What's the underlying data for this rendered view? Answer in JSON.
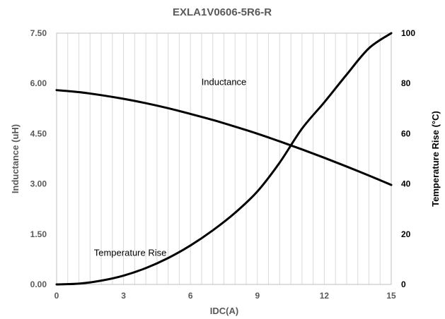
{
  "chart_data": {
    "type": "line",
    "title": "EXLA1V0606-5R6-R",
    "xlabel": "IDC(A)",
    "ylabel": "Inductance   (uH)",
    "y2label": "Temperature Rise (°C)",
    "xlim": [
      0,
      15
    ],
    "ylim": [
      0,
      7.5
    ],
    "y2lim": [
      0,
      100
    ],
    "x_ticks": [
      0,
      3,
      6,
      9,
      12,
      15
    ],
    "x_tick_labels": [
      "0",
      "3",
      "6",
      "9",
      "12",
      "15"
    ],
    "y_ticks": [
      0,
      1.5,
      3,
      4.5,
      6,
      7.5
    ],
    "y_tick_labels": [
      "0.00",
      "1.50",
      "3.00",
      "4.50",
      "6.00",
      "7.50"
    ],
    "y2_ticks": [
      0,
      20,
      40,
      60,
      80,
      100
    ],
    "y2_tick_labels": [
      "0",
      "20",
      "40",
      "60",
      "80",
      "100"
    ],
    "grid": {
      "vertical_step": 0.5,
      "horizontal": false,
      "vertical": true
    },
    "series": [
      {
        "name": "Inductance",
        "axis": "left",
        "x": [
          0,
          1,
          2,
          3,
          4,
          5,
          6,
          7,
          8,
          9,
          10,
          11,
          12,
          13,
          14,
          15
        ],
        "y": [
          5.8,
          5.74,
          5.65,
          5.54,
          5.41,
          5.26,
          5.09,
          4.91,
          4.71,
          4.5,
          4.27,
          4.03,
          3.78,
          3.52,
          3.25,
          2.97
        ]
      },
      {
        "name": "Temperature Rise",
        "axis": "right",
        "x": [
          0,
          1,
          2,
          3,
          4,
          5,
          6,
          7,
          8,
          9,
          10,
          11,
          12,
          13,
          14,
          15
        ],
        "y": [
          0,
          0.3,
          1.5,
          3.5,
          6.5,
          10.5,
          15.5,
          21.5,
          28.5,
          37,
          48.5,
          62,
          72.5,
          83.5,
          94,
          100
        ]
      }
    ],
    "annotations": [
      {
        "text": "Inductance",
        "x": 7.5,
        "y": 5.95,
        "axis": "left"
      },
      {
        "text": "Temperature Rise",
        "x": 3.3,
        "y": 0.85,
        "axis": "left"
      }
    ]
  }
}
